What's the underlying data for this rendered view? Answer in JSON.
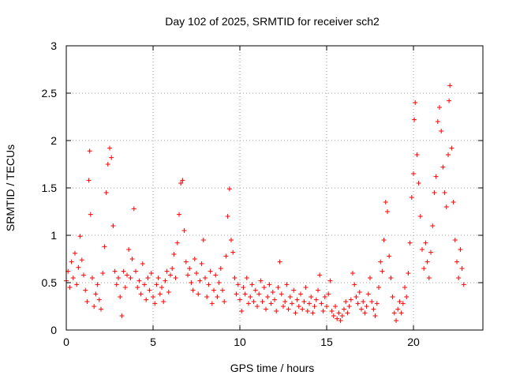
{
  "chart_data": {
    "type": "scatter",
    "title": "Day 102 of 2025, SRMTID for receiver sch2",
    "xlabel": "GPS time / hours",
    "ylabel": "SRMTID / TECUs",
    "xlim": [
      0,
      24
    ],
    "ylim": [
      0,
      3
    ],
    "xticks": [
      0,
      5,
      10,
      15,
      20
    ],
    "yticks": [
      0,
      0.5,
      1,
      1.5,
      2,
      2.5,
      3
    ],
    "xtick_labels": [
      "0",
      "5",
      "10",
      "15",
      "20"
    ],
    "ytick_labels": [
      "0",
      "0.5",
      "1",
      "1.5",
      "2",
      "2.5",
      "3"
    ],
    "grid": true,
    "marker": "+",
    "series_color": "#ff0000",
    "series": [
      {
        "name": "sch2",
        "points": [
          [
            0.0,
            0.52
          ],
          [
            0.1,
            0.62
          ],
          [
            0.2,
            0.45
          ],
          [
            0.3,
            0.72
          ],
          [
            0.4,
            0.55
          ],
          [
            0.5,
            0.81
          ],
          [
            0.6,
            0.48
          ],
          [
            0.7,
            0.66
          ],
          [
            0.8,
            0.99
          ],
          [
            0.9,
            0.74
          ],
          [
            1.0,
            0.58
          ],
          [
            1.1,
            0.42
          ],
          [
            1.2,
            0.3
          ],
          [
            1.3,
            1.58
          ],
          [
            1.35,
            1.89
          ],
          [
            1.4,
            1.22
          ],
          [
            1.5,
            0.55
          ],
          [
            1.6,
            0.25
          ],
          [
            1.7,
            0.38
          ],
          [
            1.8,
            0.48
          ],
          [
            1.9,
            0.32
          ],
          [
            2.0,
            0.22
          ],
          [
            2.1,
            0.6
          ],
          [
            2.2,
            0.88
          ],
          [
            2.3,
            1.45
          ],
          [
            2.4,
            1.75
          ],
          [
            2.5,
            1.92
          ],
          [
            2.6,
            1.82
          ],
          [
            2.7,
            1.1
          ],
          [
            2.8,
            0.62
          ],
          [
            2.9,
            0.48
          ],
          [
            3.0,
            0.55
          ],
          [
            3.1,
            0.35
          ],
          [
            3.2,
            0.15
          ],
          [
            3.3,
            0.62
          ],
          [
            3.4,
            0.45
          ],
          [
            3.5,
            0.58
          ],
          [
            3.6,
            0.85
          ],
          [
            3.7,
            0.55
          ],
          [
            3.8,
            0.75
          ],
          [
            3.9,
            1.28
          ],
          [
            4.0,
            0.62
          ],
          [
            4.1,
            0.45
          ],
          [
            4.2,
            0.52
          ],
          [
            4.3,
            0.38
          ],
          [
            4.4,
            0.7
          ],
          [
            4.5,
            0.48
          ],
          [
            4.6,
            0.32
          ],
          [
            4.7,
            0.55
          ],
          [
            4.8,
            0.42
          ],
          [
            4.9,
            0.6
          ],
          [
            5.0,
            0.35
          ],
          [
            5.1,
            0.28
          ],
          [
            5.2,
            0.48
          ],
          [
            5.3,
            0.55
          ],
          [
            5.4,
            0.38
          ],
          [
            5.5,
            0.45
          ],
          [
            5.6,
            0.3
          ],
          [
            5.7,
            0.52
          ],
          [
            5.8,
            0.62
          ],
          [
            5.9,
            0.4
          ],
          [
            6.0,
            0.58
          ],
          [
            6.1,
            0.65
          ],
          [
            6.2,
            0.8
          ],
          [
            6.3,
            0.55
          ],
          [
            6.4,
            0.92
          ],
          [
            6.5,
            1.22
          ],
          [
            6.6,
            1.55
          ],
          [
            6.7,
            1.58
          ],
          [
            6.8,
            1.05
          ],
          [
            6.9,
            0.72
          ],
          [
            7.0,
            0.58
          ],
          [
            7.1,
            0.65
          ],
          [
            7.2,
            0.5
          ],
          [
            7.3,
            0.42
          ],
          [
            7.4,
            0.75
          ],
          [
            7.5,
            0.6
          ],
          [
            7.6,
            0.38
          ],
          [
            7.7,
            0.52
          ],
          [
            7.8,
            0.7
          ],
          [
            7.9,
            0.95
          ],
          [
            8.0,
            0.55
          ],
          [
            8.1,
            0.35
          ],
          [
            8.2,
            0.48
          ],
          [
            8.3,
            0.62
          ],
          [
            8.4,
            0.28
          ],
          [
            8.5,
            0.42
          ],
          [
            8.6,
            0.58
          ],
          [
            8.7,
            0.35
          ],
          [
            8.8,
            0.5
          ],
          [
            8.9,
            0.65
          ],
          [
            9.0,
            0.42
          ],
          [
            9.1,
            0.3
          ],
          [
            9.2,
            0.78
          ],
          [
            9.3,
            1.2
          ],
          [
            9.4,
            1.49
          ],
          [
            9.5,
            0.95
          ],
          [
            9.6,
            0.82
          ],
          [
            9.7,
            0.55
          ],
          [
            9.8,
            0.38
          ],
          [
            9.9,
            0.48
          ],
          [
            10.0,
            0.32
          ],
          [
            10.1,
            0.2
          ],
          [
            10.2,
            0.45
          ],
          [
            10.3,
            0.38
          ],
          [
            10.4,
            0.55
          ],
          [
            10.5,
            0.28
          ],
          [
            10.6,
            0.35
          ],
          [
            10.7,
            0.48
          ],
          [
            10.8,
            0.3
          ],
          [
            10.9,
            0.42
          ],
          [
            11.0,
            0.25
          ],
          [
            11.1,
            0.38
          ],
          [
            11.2,
            0.52
          ],
          [
            11.3,
            0.3
          ],
          [
            11.4,
            0.45
          ],
          [
            11.5,
            0.22
          ],
          [
            11.6,
            0.35
          ],
          [
            11.7,
            0.48
          ],
          [
            11.8,
            0.28
          ],
          [
            11.9,
            0.4
          ],
          [
            12.0,
            0.32
          ],
          [
            12.1,
            0.2
          ],
          [
            12.2,
            0.45
          ],
          [
            12.3,
            0.72
          ],
          [
            12.4,
            0.38
          ],
          [
            12.5,
            0.25
          ],
          [
            12.6,
            0.3
          ],
          [
            12.7,
            0.48
          ],
          [
            12.8,
            0.22
          ],
          [
            12.9,
            0.35
          ],
          [
            13.0,
            0.28
          ],
          [
            13.1,
            0.42
          ],
          [
            13.2,
            0.18
          ],
          [
            13.3,
            0.32
          ],
          [
            13.4,
            0.25
          ],
          [
            13.5,
            0.38
          ],
          [
            13.6,
            0.22
          ],
          [
            13.7,
            0.3
          ],
          [
            13.8,
            0.45
          ],
          [
            13.9,
            0.2
          ],
          [
            14.0,
            0.28
          ],
          [
            14.1,
            0.35
          ],
          [
            14.2,
            0.18
          ],
          [
            14.3,
            0.25
          ],
          [
            14.4,
            0.32
          ],
          [
            14.5,
            0.42
          ],
          [
            14.6,
            0.58
          ],
          [
            14.7,
            0.28
          ],
          [
            14.8,
            0.2
          ],
          [
            14.9,
            0.35
          ],
          [
            15.0,
            0.25
          ],
          [
            15.1,
            0.38
          ],
          [
            15.2,
            0.52
          ],
          [
            15.3,
            0.2
          ],
          [
            15.4,
            0.15
          ],
          [
            15.5,
            0.25
          ],
          [
            15.6,
            0.12
          ],
          [
            15.7,
            0.18
          ],
          [
            15.8,
            0.1
          ],
          [
            15.9,
            0.15
          ],
          [
            16.0,
            0.22
          ],
          [
            16.1,
            0.3
          ],
          [
            16.2,
            0.18
          ],
          [
            16.3,
            0.25
          ],
          [
            16.4,
            0.32
          ],
          [
            16.5,
            0.6
          ],
          [
            16.6,
            0.48
          ],
          [
            16.7,
            0.35
          ],
          [
            16.8,
            0.28
          ],
          [
            16.9,
            0.4
          ],
          [
            17.0,
            0.22
          ],
          [
            17.1,
            0.3
          ],
          [
            17.2,
            0.18
          ],
          [
            17.3,
            0.25
          ],
          [
            17.4,
            0.38
          ],
          [
            17.5,
            0.55
          ],
          [
            17.6,
            0.3
          ],
          [
            17.7,
            0.22
          ],
          [
            17.8,
            0.15
          ],
          [
            17.9,
            0.28
          ],
          [
            18.0,
            0.45
          ],
          [
            18.1,
            0.72
          ],
          [
            18.2,
            0.62
          ],
          [
            18.3,
            0.95
          ],
          [
            18.4,
            1.35
          ],
          [
            18.5,
            1.25
          ],
          [
            18.6,
            0.78
          ],
          [
            18.7,
            0.55
          ],
          [
            18.8,
            0.35
          ],
          [
            18.9,
            0.18
          ],
          [
            19.0,
            0.1
          ],
          [
            19.1,
            0.22
          ],
          [
            19.2,
            0.3
          ],
          [
            19.3,
            0.18
          ],
          [
            19.4,
            0.28
          ],
          [
            19.5,
            0.45
          ],
          [
            19.6,
            0.35
          ],
          [
            19.7,
            0.6
          ],
          [
            19.8,
            0.92
          ],
          [
            19.9,
            1.4
          ],
          [
            20.0,
            1.65
          ],
          [
            20.05,
            2.22
          ],
          [
            20.1,
            2.4
          ],
          [
            20.2,
            1.85
          ],
          [
            20.3,
            1.55
          ],
          [
            20.4,
            1.2
          ],
          [
            20.5,
            0.85
          ],
          [
            20.6,
            0.65
          ],
          [
            20.7,
            0.92
          ],
          [
            20.8,
            0.72
          ],
          [
            20.9,
            0.55
          ],
          [
            21.0,
            0.82
          ],
          [
            21.1,
            1.1
          ],
          [
            21.2,
            1.45
          ],
          [
            21.3,
            1.62
          ],
          [
            21.4,
            2.2
          ],
          [
            21.5,
            2.35
          ],
          [
            21.6,
            2.1
          ],
          [
            21.7,
            1.72
          ],
          [
            21.8,
            1.45
          ],
          [
            21.9,
            1.3
          ],
          [
            22.0,
            1.85
          ],
          [
            22.05,
            2.42
          ],
          [
            22.1,
            2.58
          ],
          [
            22.2,
            1.92
          ],
          [
            22.3,
            1.35
          ],
          [
            22.4,
            0.95
          ],
          [
            22.5,
            0.72
          ],
          [
            22.6,
            0.55
          ],
          [
            22.7,
            0.85
          ],
          [
            22.8,
            0.65
          ],
          [
            22.9,
            0.48
          ]
        ]
      }
    ]
  }
}
